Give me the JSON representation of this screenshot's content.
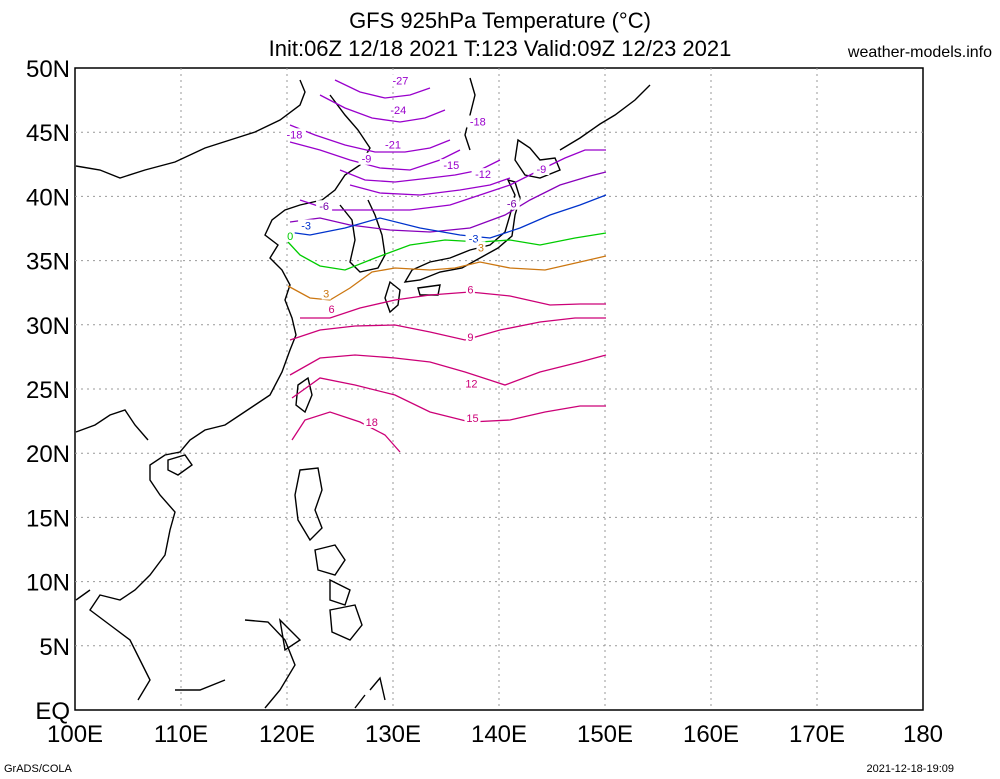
{
  "header": {
    "title_line1": "GFS 925hPa Temperature (°C)",
    "title_line2": "Init:06Z 12/18 2021 T:123 Valid:09Z 12/23 2021",
    "site": "weather-models.info"
  },
  "footer": {
    "left": "GrADS/COLA",
    "right": "2021-12-18-19:09"
  },
  "axes": {
    "lat_labels": [
      "50N",
      "45N",
      "40N",
      "35N",
      "30N",
      "25N",
      "20N",
      "15N",
      "10N",
      "5N",
      "EQ"
    ],
    "lon_labels": [
      "100E",
      "110E",
      "120E",
      "130E",
      "140E",
      "150E",
      "160E",
      "170E",
      "180"
    ],
    "lat_range": [
      0,
      50
    ],
    "lon_range": [
      100,
      180
    ],
    "grid": true
  },
  "contours": {
    "labels": [
      {
        "text": "-27",
        "lon": 130.7,
        "lat": 48.8
      },
      {
        "text": "-24",
        "lon": 130.5,
        "lat": 46.5
      },
      {
        "text": "-18",
        "lon": 120.7,
        "lat": 44.6
      },
      {
        "text": "-18",
        "lon": 138.0,
        "lat": 45.6
      },
      {
        "text": "-21",
        "lon": 130.0,
        "lat": 43.8
      },
      {
        "text": "-9",
        "lon": 127.5,
        "lat": 42.7
      },
      {
        "text": "-15",
        "lon": 135.5,
        "lat": 42.2
      },
      {
        "text": "-12",
        "lon": 138.5,
        "lat": 41.5
      },
      {
        "text": "-9",
        "lon": 144.0,
        "lat": 41.9
      },
      {
        "text": "-6",
        "lon": 123.5,
        "lat": 39.0
      },
      {
        "text": "-6",
        "lon": 141.2,
        "lat": 39.2
      },
      {
        "text": "-3",
        "lon": 121.8,
        "lat": 37.5
      },
      {
        "text": "-3",
        "lon": 137.6,
        "lat": 36.5
      },
      {
        "text": "0",
        "lon": 120.3,
        "lat": 36.7
      },
      {
        "text": "3",
        "lon": 138.3,
        "lat": 35.8
      },
      {
        "text": "3",
        "lon": 123.7,
        "lat": 32.2
      },
      {
        "text": "6",
        "lon": 124.2,
        "lat": 31.0
      },
      {
        "text": "6",
        "lon": 137.3,
        "lat": 32.5
      },
      {
        "text": "9",
        "lon": 137.3,
        "lat": 28.8
      },
      {
        "text": "12",
        "lon": 137.4,
        "lat": 25.2
      },
      {
        "text": "15",
        "lon": 137.5,
        "lat": 22.5
      },
      {
        "text": "18",
        "lon": 128.0,
        "lat": 22.2
      }
    ]
  },
  "colors": {
    "cold_purple": "#9900cc",
    "cool_purple": "#7700aa",
    "blue": "#0033cc",
    "zero_green": "#00cc00",
    "orange": "#cc7711",
    "warm_magenta": "#cc0077",
    "coast": "#000000",
    "grid": "#999999"
  }
}
